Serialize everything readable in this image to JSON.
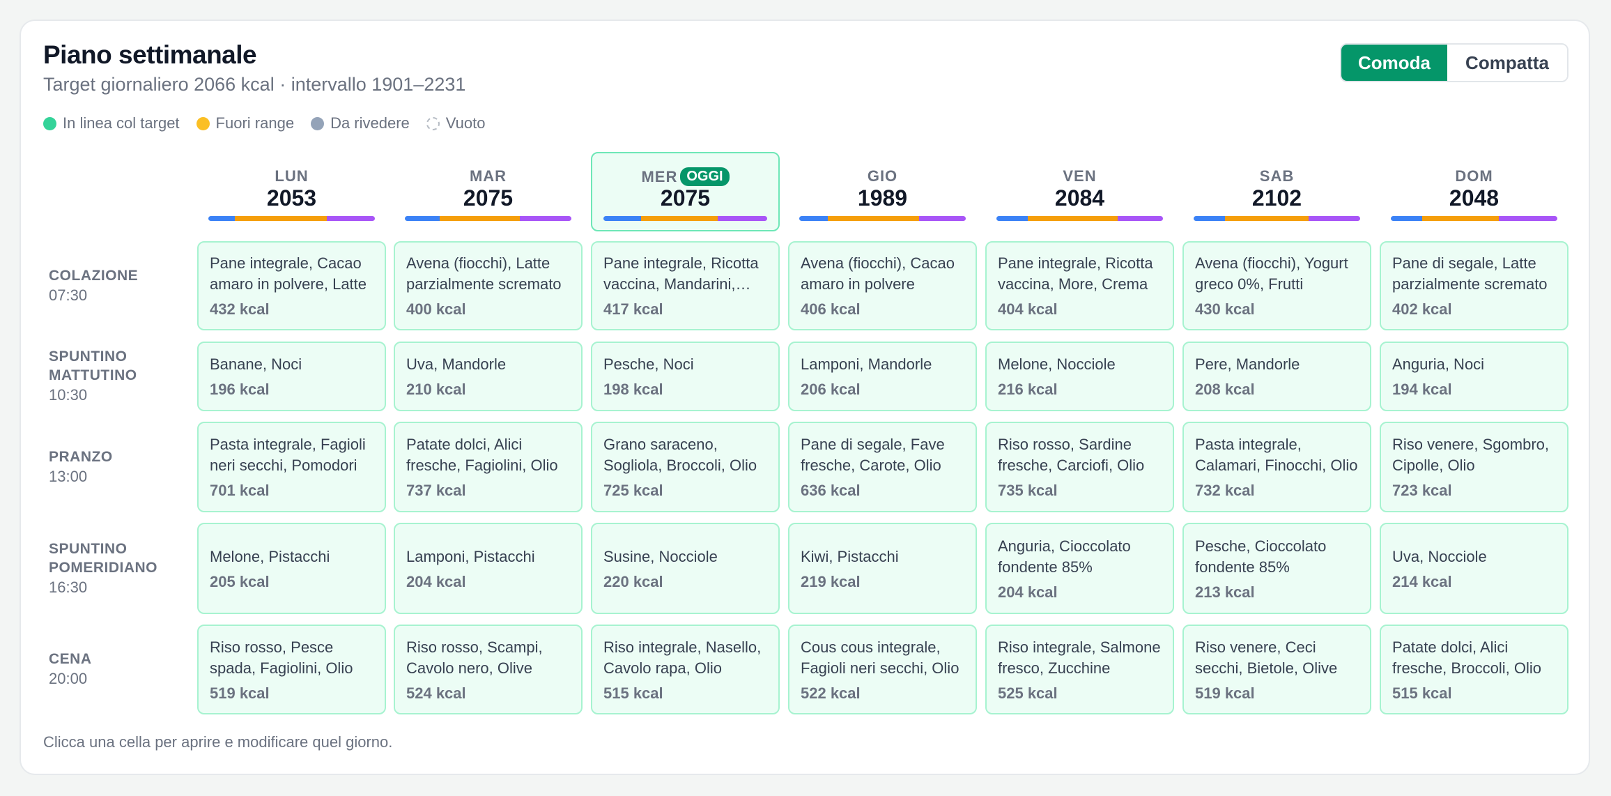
{
  "header": {
    "title": "Piano settimanale",
    "subtitle": "Target giornaliero 2066 kcal · intervallo 1901–2231"
  },
  "view_toggle": {
    "comoda": "Comoda",
    "compatta": "Compatta",
    "selected": "Comoda"
  },
  "legend": [
    {
      "label": "In linea col target",
      "color": "#34d399"
    },
    {
      "label": "Fuori range",
      "color": "#fbbf24"
    },
    {
      "label": "Da rivedere",
      "color": "#94a3b8"
    },
    {
      "label": "Vuoto",
      "color": "none"
    }
  ],
  "macro_colors": [
    "#3b82f6",
    "#f59e0b",
    "#a855f7"
  ],
  "days": [
    {
      "name": "LUN",
      "kcal": "2053",
      "today": false,
      "macro_split": [
        0.16,
        0.55,
        0.29
      ]
    },
    {
      "name": "MAR",
      "kcal": "2075",
      "today": false,
      "macro_split": [
        0.21,
        0.48,
        0.31
      ]
    },
    {
      "name": "MER",
      "kcal": "2075",
      "today": true,
      "badge": "OGGI",
      "macro_split": [
        0.23,
        0.47,
        0.3
      ]
    },
    {
      "name": "GIO",
      "kcal": "1989",
      "today": false,
      "macro_split": [
        0.17,
        0.55,
        0.28
      ]
    },
    {
      "name": "VEN",
      "kcal": "2084",
      "today": false,
      "macro_split": [
        0.19,
        0.54,
        0.27
      ]
    },
    {
      "name": "SAB",
      "kcal": "2102",
      "today": false,
      "macro_split": [
        0.19,
        0.5,
        0.31
      ]
    },
    {
      "name": "DOM",
      "kcal": "2048",
      "today": false,
      "macro_split": [
        0.19,
        0.46,
        0.35
      ]
    }
  ],
  "meals": [
    {
      "name": [
        "COLAZIONE"
      ],
      "time": "07:30",
      "cells": [
        {
          "foods": "Pane integrale, Cacao amaro in polvere, Latte",
          "kcal": "432 kcal"
        },
        {
          "foods": "Avena (fiocchi), Latte parzialmente scremato",
          "kcal": "400 kcal"
        },
        {
          "foods": "Pane integrale, Ricotta vaccina, Mandarini, Miele",
          "kcal": "417 kcal"
        },
        {
          "foods": "Avena (fiocchi), Cacao amaro in polvere",
          "kcal": "406 kcal"
        },
        {
          "foods": "Pane integrale, Ricotta vaccina, More, Crema",
          "kcal": "404 kcal"
        },
        {
          "foods": "Avena (fiocchi), Yogurt greco 0%, Frutti",
          "kcal": "430 kcal"
        },
        {
          "foods": "Pane di segale, Latte parzialmente scremato",
          "kcal": "402 kcal"
        }
      ]
    },
    {
      "name": [
        "SPUNTINO",
        "MATTUTINO"
      ],
      "time": "10:30",
      "cells": [
        {
          "foods": "Banane, Noci",
          "kcal": "196 kcal"
        },
        {
          "foods": "Uva, Mandorle",
          "kcal": "210 kcal"
        },
        {
          "foods": "Pesche, Noci",
          "kcal": "198 kcal"
        },
        {
          "foods": "Lamponi, Mandorle",
          "kcal": "206 kcal"
        },
        {
          "foods": "Melone, Nocciole",
          "kcal": "216 kcal"
        },
        {
          "foods": "Pere, Mandorle",
          "kcal": "208 kcal"
        },
        {
          "foods": "Anguria, Noci",
          "kcal": "194 kcal"
        }
      ]
    },
    {
      "name": [
        "PRANZO"
      ],
      "time": "13:00",
      "cells": [
        {
          "foods": "Pasta integrale, Fagioli neri secchi, Pomodori",
          "kcal": "701 kcal"
        },
        {
          "foods": "Patate dolci, Alici fresche, Fagiolini, Olio",
          "kcal": "737 kcal"
        },
        {
          "foods": "Grano saraceno, Sogliola, Broccoli, Olio",
          "kcal": "725 kcal"
        },
        {
          "foods": "Pane di segale, Fave fresche, Carote, Olio",
          "kcal": "636 kcal"
        },
        {
          "foods": "Riso rosso, Sardine fresche, Carciofi, Olio",
          "kcal": "735 kcal"
        },
        {
          "foods": "Pasta integrale, Calamari, Finocchi, Olio",
          "kcal": "732 kcal"
        },
        {
          "foods": "Riso venere, Sgombro, Cipolle, Olio",
          "kcal": "723 kcal"
        }
      ]
    },
    {
      "name": [
        "SPUNTINO",
        "POMERIDIANO"
      ],
      "time": "16:30",
      "cells": [
        {
          "foods": "Melone, Pistacchi",
          "kcal": "205 kcal"
        },
        {
          "foods": "Lamponi, Pistacchi",
          "kcal": "204 kcal"
        },
        {
          "foods": "Susine, Nocciole",
          "kcal": "220 kcal"
        },
        {
          "foods": "Kiwi, Pistacchi",
          "kcal": "219 kcal"
        },
        {
          "foods": "Anguria, Cioccolato fondente 85%",
          "kcal": "204 kcal"
        },
        {
          "foods": "Pesche, Cioccolato fondente 85%",
          "kcal": "213 kcal"
        },
        {
          "foods": "Uva, Nocciole",
          "kcal": "214 kcal"
        }
      ]
    },
    {
      "name": [
        "CENA"
      ],
      "time": "20:00",
      "cells": [
        {
          "foods": "Riso rosso, Pesce spada, Fagiolini, Olio",
          "kcal": "519 kcal"
        },
        {
          "foods": "Riso rosso, Scampi, Cavolo nero, Olive",
          "kcal": "524 kcal"
        },
        {
          "foods": "Riso integrale, Nasello, Cavolo rapa, Olio",
          "kcal": "515 kcal"
        },
        {
          "foods": "Cous cous integrale, Fagioli neri secchi, Olio",
          "kcal": "522 kcal"
        },
        {
          "foods": "Riso integrale, Salmone fresco, Zucchine",
          "kcal": "525 kcal"
        },
        {
          "foods": "Riso venere, Ceci secchi, Bietole, Olive",
          "kcal": "519 kcal"
        },
        {
          "foods": "Patate dolci, Alici fresche, Broccoli, Olio",
          "kcal": "515 kcal"
        }
      ]
    }
  ],
  "footer": "Clicca una cella per aprire e modificare quel giorno."
}
